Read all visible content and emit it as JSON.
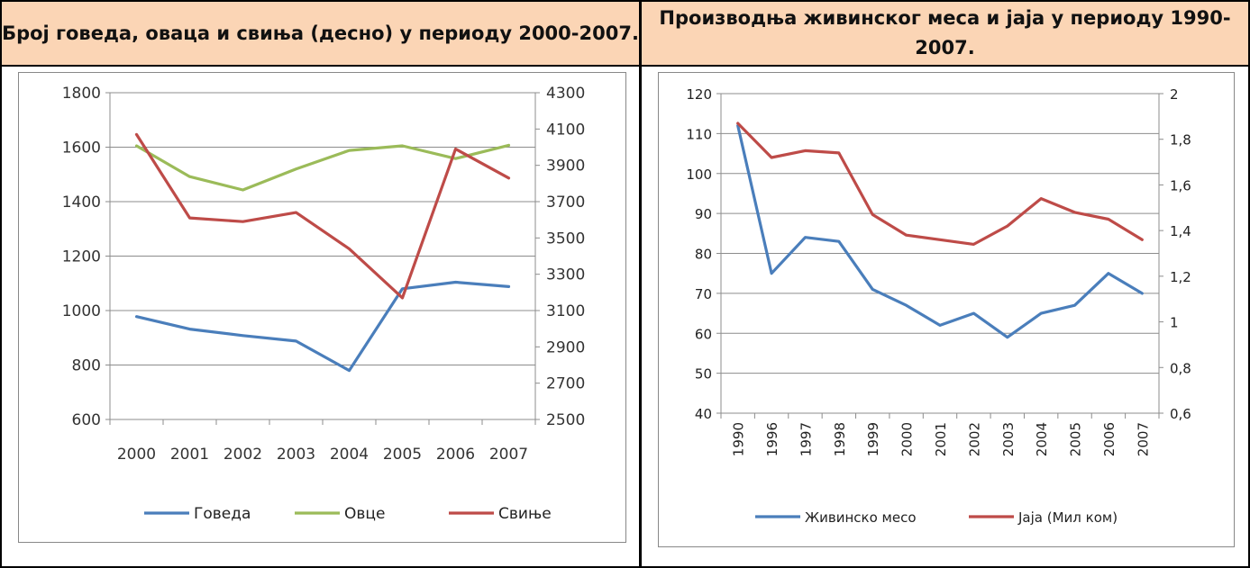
{
  "left_title": "Број говеда, оваца и свиња (десно) у периоду 2000-2007.",
  "right_title": "Производња живинског меса и јаја у периоду 1990-2007.",
  "chart_data": [
    {
      "type": "line",
      "title": "Број говеда, оваца и свиња (десно) у периоду 2000-2007.",
      "categories": [
        "2000",
        "2001",
        "2002",
        "2003",
        "2004",
        "2005",
        "2006",
        "2007"
      ],
      "y_left": {
        "range": [
          600,
          1800
        ],
        "ticks": [
          "600",
          "800",
          "1000",
          "1200",
          "1400",
          "1600",
          "1800"
        ]
      },
      "y_right": {
        "range": [
          2500,
          4300
        ],
        "ticks": [
          "2500",
          "2700",
          "2900",
          "3100",
          "3300",
          "3500",
          "3700",
          "3900",
          "4100",
          "4300"
        ]
      },
      "legend_position": "bottom",
      "grid": true,
      "series": [
        {
          "name": "Говеда",
          "axis": "left",
          "color": "#4a7ebb",
          "values": [
            978,
            932,
            908,
            888,
            780,
            1080,
            1104,
            1088
          ]
        },
        {
          "name": "Овце",
          "axis": "left",
          "color": "#9bbb59",
          "values": [
            1605,
            1492,
            1443,
            1520,
            1588,
            1605,
            1558,
            1607
          ]
        },
        {
          "name": "Свиње",
          "axis": "right",
          "color": "#be4b48",
          "values": [
            4070,
            3610,
            3590,
            3640,
            3440,
            3170,
            3990,
            3830
          ]
        }
      ]
    },
    {
      "type": "line",
      "title": "Производња живинског меса и јаја у периоду 1990-2007.",
      "categories": [
        "1990",
        "1996",
        "1997",
        "1998",
        "1999",
        "2000",
        "2001",
        "2002",
        "2003",
        "2004",
        "2005",
        "2006",
        "2007"
      ],
      "y_left": {
        "range": [
          40,
          120
        ],
        "ticks": [
          "40",
          "50",
          "60",
          "70",
          "80",
          "90",
          "100",
          "110",
          "120"
        ]
      },
      "y_right": {
        "range": [
          0.6,
          2
        ],
        "ticks": [
          "0,6",
          "0,8",
          "1",
          "1,2",
          "1,4",
          "1,6",
          "1,8",
          "2"
        ]
      },
      "legend_position": "bottom",
      "grid": true,
      "series": [
        {
          "name": "Живинско месо",
          "axis": "left",
          "color": "#4a7ebb",
          "values": [
            112,
            75,
            84,
            83,
            71,
            67,
            62,
            65,
            59,
            65,
            67,
            75,
            70
          ]
        },
        {
          "name": "Јаја (Мил ком)",
          "axis": "right",
          "color": "#be4b48",
          "values": [
            1.87,
            1.72,
            1.75,
            1.74,
            1.47,
            1.38,
            1.36,
            1.34,
            1.42,
            1.54,
            1.48,
            1.45,
            1.36
          ]
        }
      ]
    }
  ]
}
